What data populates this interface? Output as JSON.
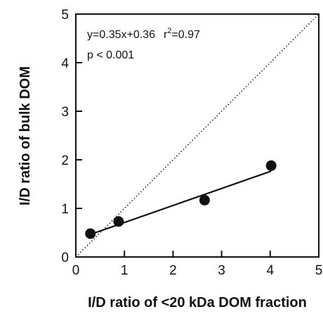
{
  "chart_data": {
    "type": "scatter",
    "xlabel": "I/D ratio of <20 kDa DOM fraction",
    "ylabel": "I/D ratio of bulk DOM",
    "xlim": [
      0,
      5
    ],
    "ylim": [
      0,
      5
    ],
    "x_ticks": [
      "0",
      "1",
      "2",
      "3",
      "4",
      "5"
    ],
    "y_ticks": [
      "0",
      "1",
      "2",
      "3",
      "4",
      "5"
    ],
    "points": [
      {
        "x": 0.3,
        "y": 0.48
      },
      {
        "x": 0.88,
        "y": 0.73
      },
      {
        "x": 2.65,
        "y": 1.17
      },
      {
        "x": 4.02,
        "y": 1.88
      }
    ],
    "regression": {
      "slope": 0.35,
      "intercept": 0.36,
      "x_range": [
        0.3,
        4.02
      ]
    },
    "reference_line": {
      "style": "dotted",
      "slope": 1,
      "intercept": 0
    },
    "annotations": {
      "equation": "y=0.35x+0.36",
      "r2_prefix": "r",
      "r2_exponent": "2",
      "r2_value": "=0.97",
      "p_value": "p < 0.001"
    },
    "grid": false,
    "legend": "none"
  }
}
